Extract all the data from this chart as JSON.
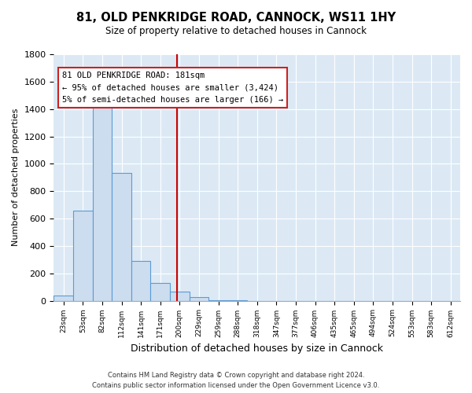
{
  "title": "81, OLD PENKRIDGE ROAD, CANNOCK, WS11 1HY",
  "subtitle": "Size of property relative to detached houses in Cannock",
  "xlabel": "Distribution of detached houses by size in Cannock",
  "ylabel": "Number of detached properties",
  "bar_color": "#ccddef",
  "bar_edge_color": "#5b9bd5",
  "background_color": "#dce9f5",
  "bin_labels": [
    "23sqm",
    "53sqm",
    "82sqm",
    "112sqm",
    "141sqm",
    "171sqm",
    "200sqm",
    "229sqm",
    "259sqm",
    "288sqm",
    "318sqm",
    "347sqm",
    "377sqm",
    "406sqm",
    "435sqm",
    "465sqm",
    "494sqm",
    "524sqm",
    "553sqm",
    "583sqm",
    "612sqm"
  ],
  "bar_values": [
    40,
    655,
    1469,
    936,
    293,
    130,
    65,
    25,
    5,
    3,
    0,
    0,
    0,
    0,
    0,
    0,
    0,
    0,
    0,
    0,
    0
  ],
  "ylim": [
    0,
    1800
  ],
  "yticks": [
    0,
    200,
    400,
    600,
    800,
    1000,
    1200,
    1400,
    1600,
    1800
  ],
  "vline_x": 5.85,
  "vline_color": "#cc0000",
  "annotation_title": "81 OLD PENKRIDGE ROAD: 181sqm",
  "annotation_line1": "← 95% of detached houses are smaller (3,424)",
  "annotation_line2": "5% of semi-detached houses are larger (166) →",
  "footer_line1": "Contains HM Land Registry data © Crown copyright and database right 2024.",
  "footer_line2": "Contains public sector information licensed under the Open Government Licence v3.0."
}
